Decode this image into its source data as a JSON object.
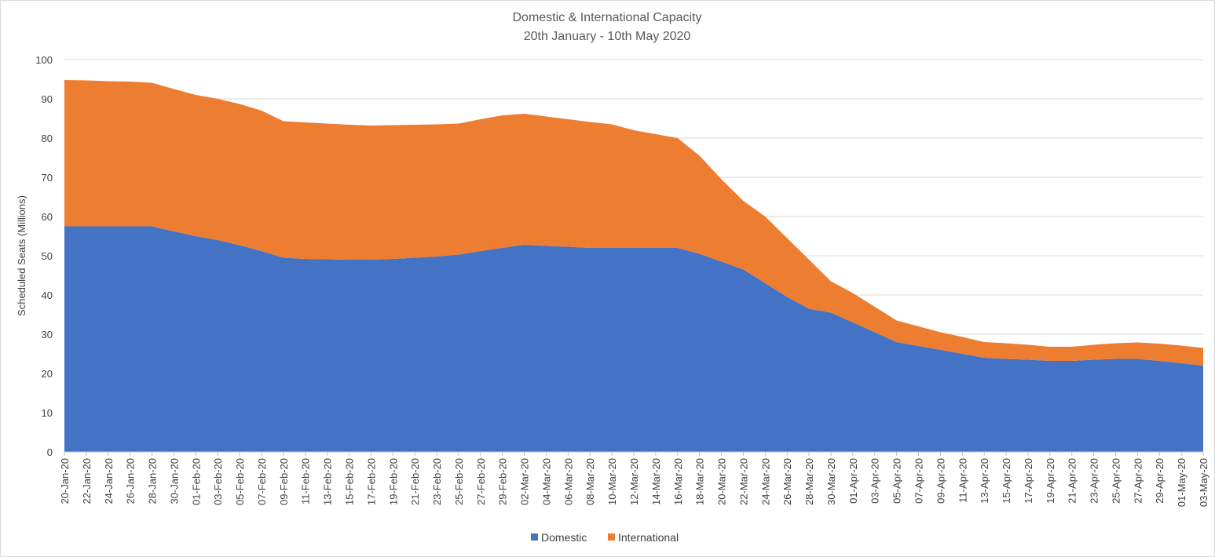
{
  "chart_data": {
    "type": "area",
    "stacked": true,
    "title": "Domestic & International Capacity",
    "subtitle": "20th January - 10th May 2020",
    "xlabel": "",
    "ylabel": "Scheduled Seats (Millions)",
    "ylim": [
      0,
      100
    ],
    "yticks": [
      0,
      10,
      20,
      30,
      40,
      50,
      60,
      70,
      80,
      90,
      100
    ],
    "grid": true,
    "legend_position": "bottom-center",
    "categories": [
      "20-Jan-20",
      "22-Jan-20",
      "24-Jan-20",
      "26-Jan-20",
      "28-Jan-20",
      "30-Jan-20",
      "01-Feb-20",
      "03-Feb-20",
      "05-Feb-20",
      "07-Feb-20",
      "09-Feb-20",
      "11-Feb-20",
      "13-Feb-20",
      "15-Feb-20",
      "17-Feb-20",
      "19-Feb-20",
      "21-Feb-20",
      "23-Feb-20",
      "25-Feb-20",
      "27-Feb-20",
      "29-Feb-20",
      "02-Mar-20",
      "04-Mar-20",
      "06-Mar-20",
      "08-Mar-20",
      "10-Mar-20",
      "12-Mar-20",
      "14-Mar-20",
      "16-Mar-20",
      "18-Mar-20",
      "20-Mar-20",
      "22-Mar-20",
      "24-Mar-20",
      "26-Mar-20",
      "28-Mar-20",
      "30-Mar-20",
      "01-Apr-20",
      "03-Apr-20",
      "05-Apr-20",
      "07-Apr-20",
      "09-Apr-20",
      "11-Apr-20",
      "13-Apr-20",
      "15-Apr-20",
      "17-Apr-20",
      "19-Apr-20",
      "21-Apr-20",
      "23-Apr-20",
      "25-Apr-20",
      "27-Apr-20",
      "29-Apr-20",
      "01-May-20",
      "03-May-20"
    ],
    "series": [
      {
        "name": "Domestic",
        "color": "#4472c4",
        "values": [
          57.5,
          57.5,
          57.5,
          57.5,
          57.5,
          56.2,
          55.0,
          54.0,
          52.7,
          51.2,
          49.5,
          49.2,
          49.1,
          49.0,
          49.0,
          49.2,
          49.5,
          49.8,
          50.3,
          51.2,
          52.0,
          52.8,
          52.5,
          52.3,
          52.0,
          52.0,
          52.0,
          52.0,
          52.0,
          50.5,
          48.5,
          46.5,
          43.0,
          39.5,
          36.5,
          35.5,
          33.0,
          30.5,
          28.0,
          27.0,
          26.0,
          25.0,
          24.0,
          23.7,
          23.5,
          23.2,
          23.2,
          23.5,
          23.7,
          23.7,
          23.2,
          22.6,
          22.0
        ]
      },
      {
        "name": "International",
        "color": "#ed7d31",
        "values": [
          37.3,
          37.2,
          37.0,
          36.9,
          36.6,
          36.3,
          36.0,
          36.0,
          36.0,
          35.8,
          34.8,
          34.8,
          34.6,
          34.4,
          34.2,
          34.1,
          33.9,
          33.7,
          33.4,
          33.6,
          33.8,
          33.4,
          33.0,
          32.5,
          32.1,
          31.5,
          30.0,
          29.0,
          28.0,
          25.0,
          21.0,
          17.5,
          17.0,
          15.0,
          12.5,
          8.0,
          7.5,
          6.5,
          5.5,
          5.0,
          4.5,
          4.3,
          4.0,
          4.0,
          3.8,
          3.6,
          3.6,
          3.8,
          4.0,
          4.2,
          4.4,
          4.5,
          4.5
        ]
      }
    ]
  }
}
